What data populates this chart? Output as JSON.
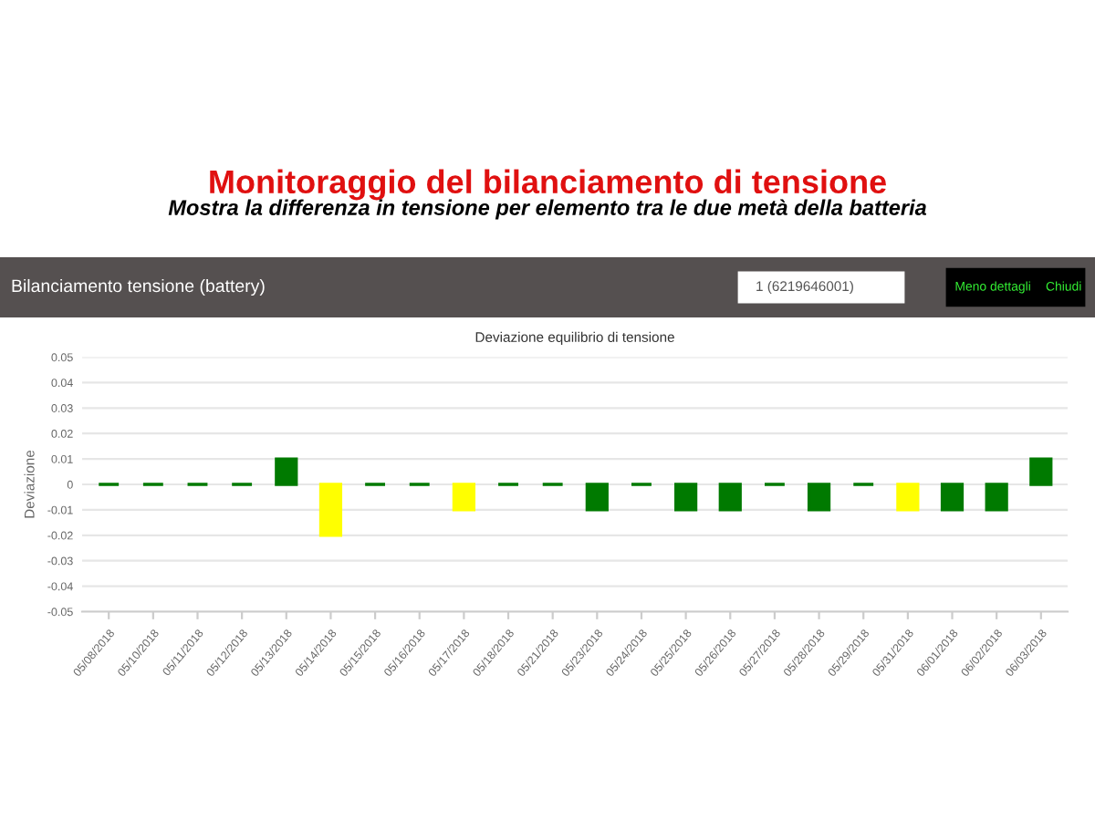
{
  "chart_data": {
    "type": "bar",
    "title": "Deviazione equilibrio di tensione",
    "ylabel": "Deviazione",
    "annotations": [
      "Monitoraggio del bilanciamento di tensione",
      "Mostra la differenza in tensione per elemento tra le due metà della batteria",
      "Bilanciamento tensione (battery)",
      "1 (6219646001)",
      "Meno dettagli",
      "Chiudi"
    ],
    "categories": [
      "05/08/2018",
      "05/10/2018",
      "05/11/2018",
      "05/12/2018",
      "05/13/2018",
      "05/14/2018",
      "05/15/2018",
      "05/16/2018",
      "05/17/2018",
      "05/18/2018",
      "05/21/2018",
      "05/23/2018",
      "05/24/2018",
      "05/25/2018",
      "05/26/2018",
      "05/27/2018",
      "05/28/2018",
      "05/29/2018",
      "05/31/2018",
      "06/01/2018",
      "06/02/2018",
      "06/03/2018"
    ],
    "values": [
      0,
      0,
      0,
      0,
      0.01,
      -0.02,
      0,
      0,
      -0.01,
      0,
      0,
      -0.01,
      0,
      -0.01,
      -0.01,
      0,
      -0.01,
      0,
      -0.01,
      -0.01,
      -0.01,
      0.01
    ],
    "colors": [
      "#007a00",
      "#007a00",
      "#007a00",
      "#007a00",
      "#007a00",
      "#ffff00",
      "#007a00",
      "#007a00",
      "#ffff00",
      "#007a00",
      "#007a00",
      "#007a00",
      "#007a00",
      "#007a00",
      "#007a00",
      "#007a00",
      "#007a00",
      "#007a00",
      "#ffff00",
      "#007a00",
      "#007a00",
      "#007a00"
    ],
    "ylim": [
      -0.05,
      0.05
    ],
    "yticks": [
      -0.05,
      -0.04,
      -0.03,
      -0.02,
      -0.01,
      0,
      0.01,
      0.02,
      0.03,
      0.04,
      0.05
    ],
    "grid": "y"
  }
}
